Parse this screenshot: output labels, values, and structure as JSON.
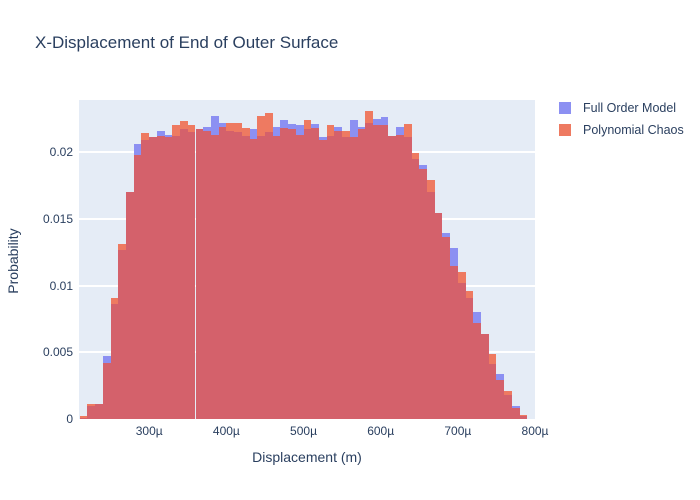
{
  "chart_data": {
    "type": "histogram",
    "barmode": "overlay",
    "title": "X-Displacement of End of Outer Surface",
    "xlabel": "Displacement (m)",
    "ylabel": "Probability",
    "x_ticks": [
      {
        "value": 300,
        "label": "300µ"
      },
      {
        "value": 400,
        "label": "400µ"
      },
      {
        "value": 500,
        "label": "500µ"
      },
      {
        "value": 600,
        "label": "600µ"
      },
      {
        "value": 700,
        "label": "700µ"
      },
      {
        "value": 800,
        "label": "800µ"
      }
    ],
    "y_ticks": [
      {
        "value": 0,
        "label": "0"
      },
      {
        "value": 0.005,
        "label": "0.005"
      },
      {
        "value": 0.01,
        "label": "0.01"
      },
      {
        "value": 0.015,
        "label": "0.015"
      },
      {
        "value": 0.02,
        "label": "0.02"
      }
    ],
    "xlim_micrometers": [
      209,
      800
    ],
    "ylim": [
      0,
      0.0239
    ],
    "grid": true,
    "legend_position": "right-top",
    "bin_width_micrometers": 10,
    "bin_starts_micrometers": [
      210,
      220,
      230,
      240,
      250,
      260,
      270,
      280,
      290,
      300,
      310,
      320,
      330,
      340,
      350,
      360,
      370,
      380,
      390,
      400,
      410,
      420,
      430,
      440,
      450,
      460,
      470,
      480,
      490,
      500,
      510,
      520,
      530,
      540,
      550,
      560,
      570,
      580,
      590,
      600,
      610,
      620,
      630,
      640,
      650,
      660,
      670,
      680,
      690,
      700,
      710,
      720,
      730,
      740,
      750,
      760,
      770,
      780
    ],
    "series": [
      {
        "name": "Full Order Model",
        "color": "#8C90F2",
        "values": [
          0.0001,
          0.001,
          0.0011,
          0.0047,
          0.0086,
          0.0127,
          0.017,
          0.0206,
          0.0209,
          0.0211,
          0.0216,
          0.0213,
          0.0212,
          0.0217,
          0.0215,
          0.0217,
          0.0219,
          0.0227,
          0.0222,
          0.0216,
          0.0215,
          0.0212,
          0.0217,
          0.0212,
          0.0215,
          0.0219,
          0.0224,
          0.0221,
          0.022,
          0.0217,
          0.0221,
          0.0211,
          0.0212,
          0.0219,
          0.0211,
          0.0224,
          0.0219,
          0.0222,
          0.0225,
          0.0226,
          0.0212,
          0.0219,
          0.0211,
          0.0195,
          0.019,
          0.017,
          0.0154,
          0.0139,
          0.0128,
          0.0102,
          0.0091,
          0.008,
          0.0064,
          0.0041,
          0.0034,
          0.0018,
          0.001,
          0.0002
        ]
      },
      {
        "name": "Polynomial Chaos",
        "color": "#EE7A61",
        "values": [
          0.0002,
          0.0011,
          0.0011,
          0.0042,
          0.0091,
          0.0131,
          0.017,
          0.0198,
          0.0214,
          0.0211,
          0.0212,
          0.0211,
          0.022,
          0.0223,
          0.022,
          0.0217,
          0.0216,
          0.0213,
          0.0219,
          0.0222,
          0.0222,
          0.0218,
          0.021,
          0.0227,
          0.0229,
          0.0212,
          0.0218,
          0.0217,
          0.0213,
          0.0224,
          0.0218,
          0.0209,
          0.022,
          0.0216,
          0.0216,
          0.0211,
          0.0217,
          0.0231,
          0.022,
          0.022,
          0.0212,
          0.0213,
          0.0221,
          0.0199,
          0.0187,
          0.0179,
          0.0154,
          0.0136,
          0.0115,
          0.011,
          0.0096,
          0.0072,
          0.0064,
          0.0049,
          0.0029,
          0.0021,
          0.0008,
          0.0003
        ]
      }
    ],
    "overlap_color": "#D4616B",
    "colors": {
      "plot_background": "#E5ECF6",
      "paper_background": "#FFFFFF",
      "gridline": "#FFFFFF",
      "text": "#2A3F5F"
    }
  }
}
